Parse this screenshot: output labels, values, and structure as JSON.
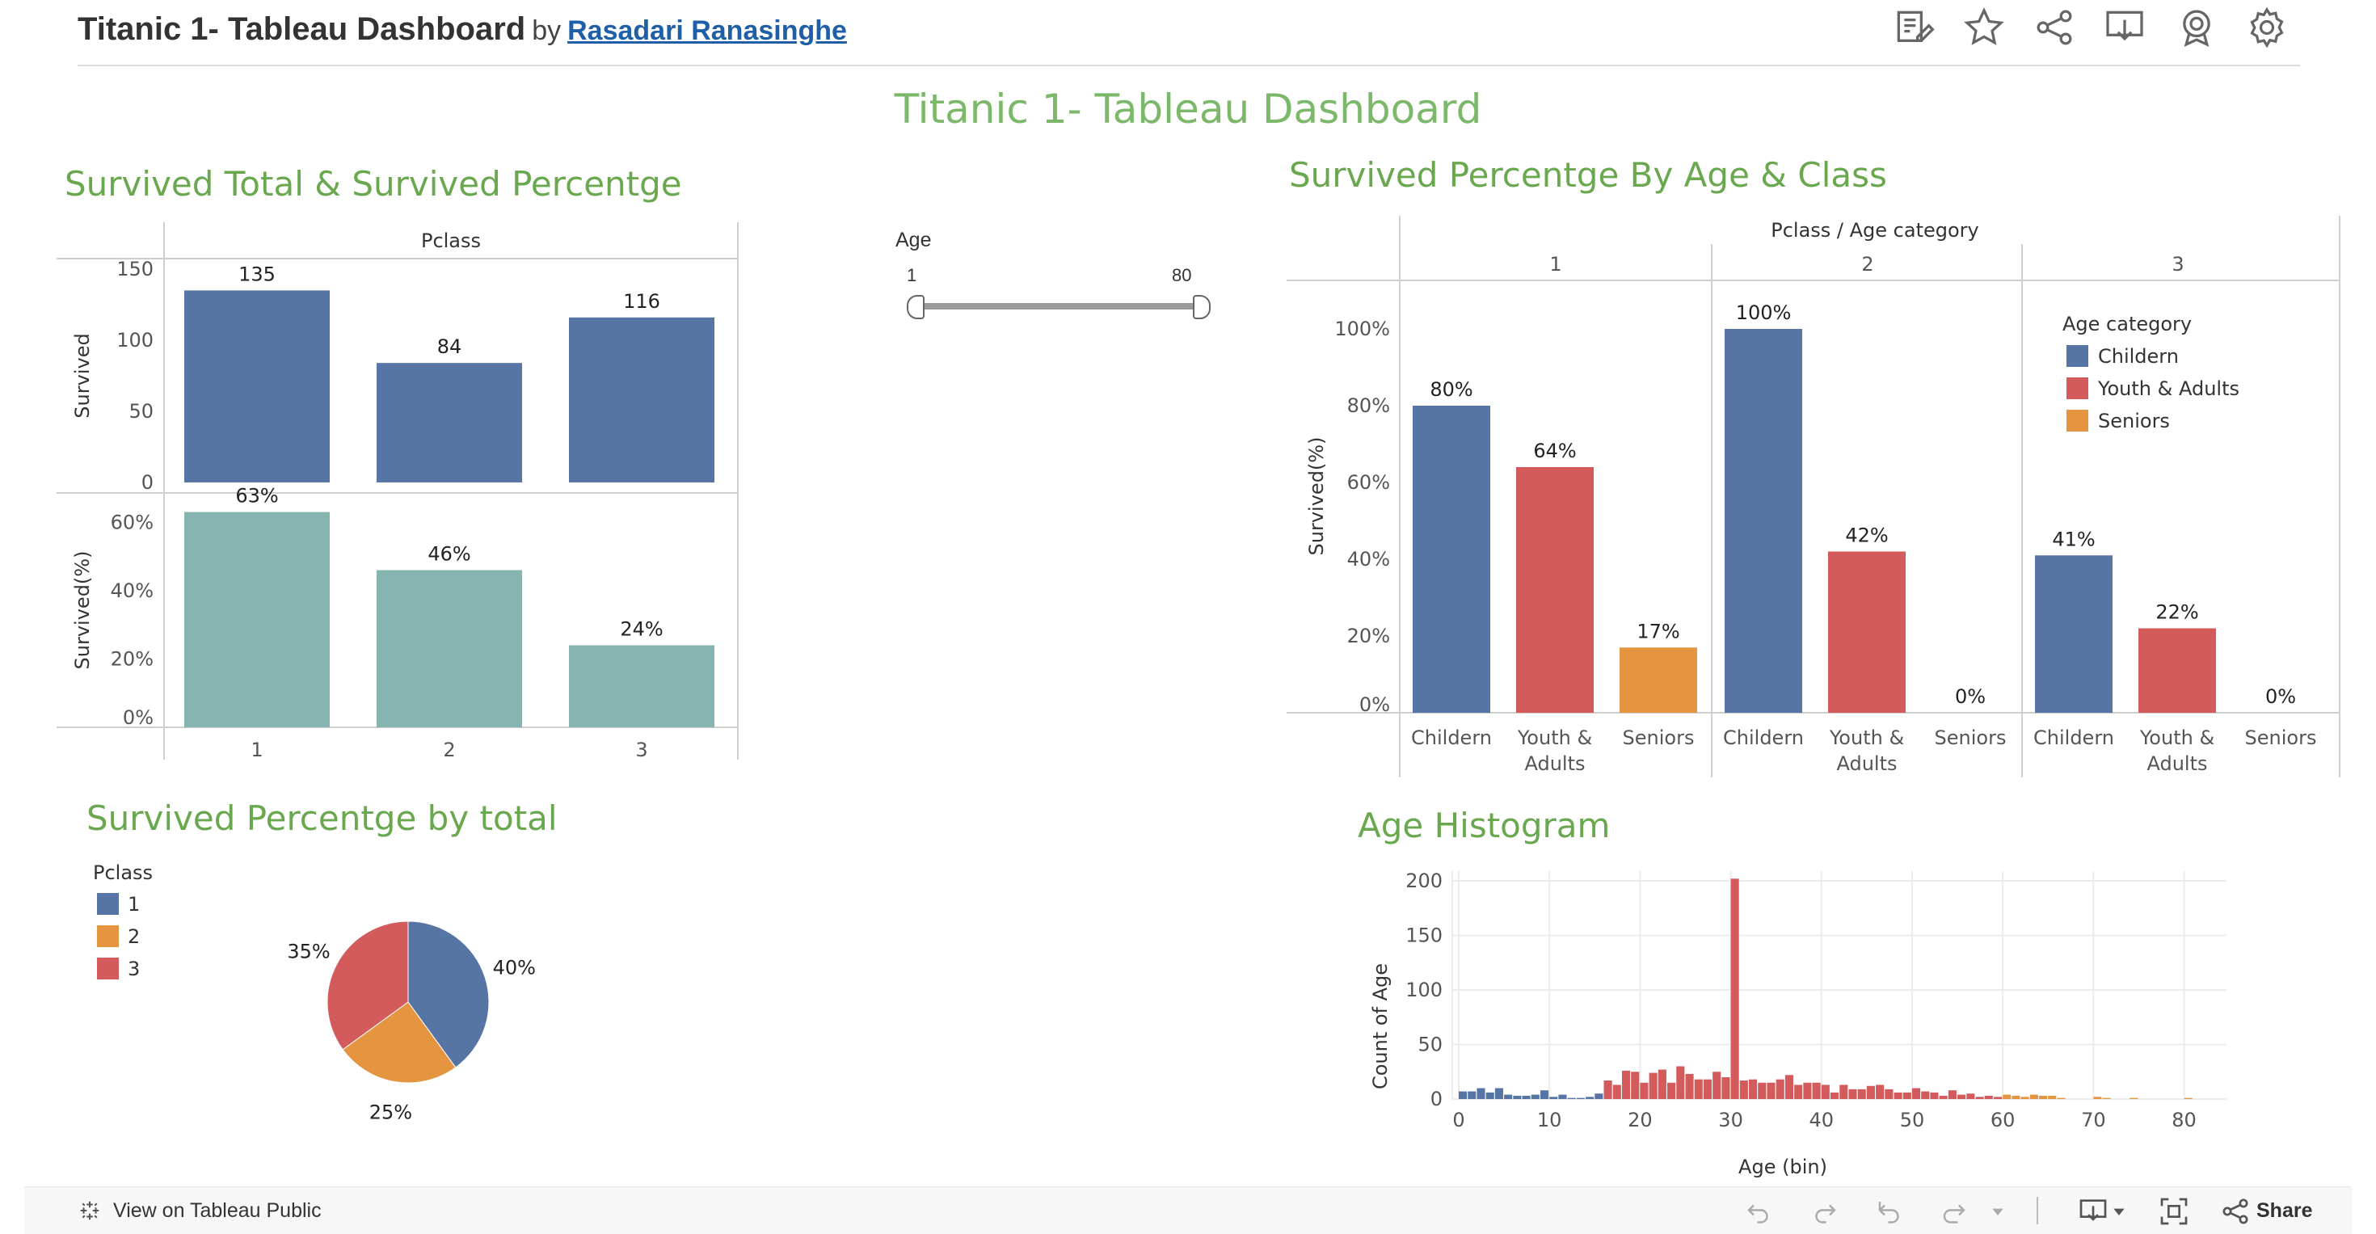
{
  "header": {
    "title": "Titanic 1- Tableau Dashboard",
    "by": "by",
    "author": "Rasadari Ranasinghe",
    "icons": [
      "edit-icon",
      "star-icon",
      "share-icon",
      "download-icon",
      "badge-icon",
      "gear-icon"
    ]
  },
  "dashboard_title": "Titanic 1- Tableau Dashboard",
  "sections": {
    "survived_total": "Survived Total &  Survived Percentge",
    "by_age_class": "Survived Percentge By Age & Class",
    "by_total": "Survived Percentge by total",
    "age_histogram": "Age Histogram"
  },
  "age_filter": {
    "label": "Age",
    "min": "1",
    "max": "80"
  },
  "colors": {
    "blue": "#5775a4",
    "red": "#d45b5b",
    "orange": "#e59540",
    "teal": "#86b5b1",
    "title_green": "#6aa84f"
  },
  "chart_data": [
    {
      "type": "bar",
      "header": "Pclass",
      "categories": [
        "1",
        "2",
        "3"
      ],
      "ylabel": "Survived",
      "ylim": [
        0,
        150
      ],
      "yticks": [
        "0",
        "50",
        "100",
        "150"
      ],
      "values": [
        135,
        84,
        116
      ],
      "labels": [
        "135",
        "84",
        "116"
      ]
    },
    {
      "type": "bar",
      "categories": [
        "1",
        "2",
        "3"
      ],
      "ylabel": "Survived(%)",
      "ylim": [
        0,
        70
      ],
      "yticks": [
        "0%",
        "20%",
        "40%",
        "60%"
      ],
      "values": [
        63,
        46,
        24
      ],
      "labels": [
        "63%",
        "46%",
        "24%"
      ]
    },
    {
      "type": "bar",
      "header": "Pclass / Age category",
      "panels": [
        "1",
        "2",
        "3"
      ],
      "categories": [
        "Childern",
        "Youth & Adults",
        "Seniors"
      ],
      "ylabel": "Survived(%)",
      "ylim": [
        0,
        100
      ],
      "yticks": [
        "0%",
        "20%",
        "40%",
        "60%",
        "80%",
        "100%"
      ],
      "legend_title": "Age category",
      "legend": [
        "Childern",
        "Youth & Adults",
        "Seniors"
      ],
      "legend_position": "top-right",
      "series": [
        {
          "name": "Childern",
          "values": [
            80,
            100,
            41
          ]
        },
        {
          "name": "Youth & Adults",
          "values": [
            64,
            42,
            22
          ]
        },
        {
          "name": "Seniors",
          "values": [
            17,
            0,
            0
          ]
        }
      ],
      "labels": [
        [
          "80%",
          "64%",
          "17%"
        ],
        [
          "100%",
          "42%",
          "0%"
        ],
        [
          "41%",
          "22%",
          "0%"
        ]
      ]
    },
    {
      "type": "pie",
      "legend_title": "Pclass",
      "categories": [
        "1",
        "2",
        "3"
      ],
      "values": [
        40,
        25,
        35
      ],
      "labels": [
        "40%",
        "25%",
        "35%"
      ]
    },
    {
      "type": "bar",
      "xlabel": "Age (bin)",
      "ylabel": "Count of Age",
      "xlim": [
        0,
        82
      ],
      "ylim": [
        0,
        200
      ],
      "xticks": [
        "0",
        "10",
        "20",
        "30",
        "40",
        "50",
        "60",
        "70",
        "80"
      ],
      "yticks": [
        "0",
        "50",
        "100",
        "150",
        "200"
      ],
      "bins": [
        0,
        1,
        2,
        3,
        4,
        5,
        6,
        7,
        8,
        9,
        10,
        11,
        12,
        13,
        14,
        15,
        16,
        17,
        18,
        19,
        20,
        21,
        22,
        23,
        24,
        25,
        26,
        27,
        28,
        29,
        30,
        31,
        32,
        33,
        34,
        35,
        36,
        37,
        38,
        39,
        40,
        41,
        42,
        43,
        44,
        45,
        46,
        47,
        48,
        49,
        50,
        51,
        52,
        53,
        54,
        55,
        56,
        57,
        58,
        59,
        60,
        61,
        62,
        63,
        64,
        65,
        66,
        70,
        71,
        74,
        80
      ],
      "counts": [
        7,
        7,
        10,
        6,
        10,
        4,
        3,
        3,
        4,
        8,
        2,
        4,
        1,
        1,
        2,
        5,
        17,
        13,
        26,
        25,
        15,
        24,
        27,
        15,
        30,
        23,
        18,
        18,
        25,
        20,
        202,
        17,
        18,
        15,
        15,
        18,
        22,
        13,
        15,
        15,
        13,
        6,
        13,
        9,
        9,
        12,
        13,
        9,
        6,
        6,
        10,
        7,
        6,
        3,
        8,
        4,
        5,
        2,
        3,
        2,
        4,
        3,
        2,
        4,
        3,
        3,
        1,
        2,
        1,
        1,
        1
      ]
    }
  ],
  "footer": {
    "view_label": "View on Tableau Public",
    "share_label": "Share"
  }
}
